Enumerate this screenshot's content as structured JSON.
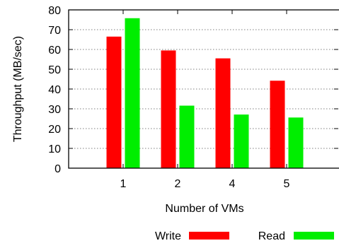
{
  "chart_data": {
    "type": "bar",
    "title": "",
    "xlabel": "Number of VMs",
    "ylabel": "Throughput (MB/sec)",
    "categories": [
      "1",
      "2",
      "4",
      "5"
    ],
    "ylim": [
      0,
      80
    ],
    "yticks": [
      0,
      10,
      20,
      30,
      40,
      50,
      60,
      70,
      80
    ],
    "grid": "horizontal-dotted",
    "legend": "bottom-right",
    "series": [
      {
        "name": "Write",
        "color": "#ff0000",
        "values": [
          66.5,
          59.5,
          55.5,
          44.2
        ]
      },
      {
        "name": "Read",
        "color": "#00ee00",
        "values": [
          75.8,
          31.6,
          27.1,
          25.6
        ]
      }
    ]
  }
}
